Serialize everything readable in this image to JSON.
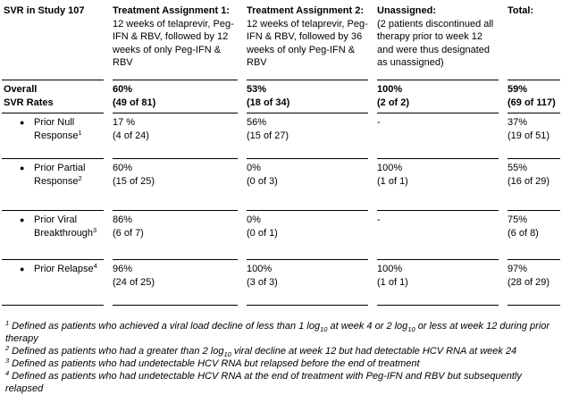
{
  "table": {
    "corner_title": "SVR in Study 107",
    "columns": [
      {
        "title": "Treatment Assignment 1:",
        "desc": "12 weeks of telaprevir, Peg-IFN & RBV, followed by 12 weeks of only Peg-IFN & RBV"
      },
      {
        "title": "Treatment Assignment 2:",
        "desc": "12 weeks of telaprevir, Peg-IFN & RBV, followed by 36 weeks of only Peg-IFN & RBV"
      },
      {
        "title": "Unassigned:",
        "desc": "(2 patients discontinued all therapy prior to week 12 and were thus designated as unassigned)"
      },
      {
        "title": "Total:",
        "desc": ""
      }
    ],
    "rows": [
      {
        "label_line1": "Overall",
        "label_line2": "SVR Rates",
        "cells": [
          {
            "v": "60%",
            "n": "(49 of 81)"
          },
          {
            "v": "53%",
            "n": "(18 of 34)"
          },
          {
            "v": "100%",
            "n": "(2 of 2)"
          },
          {
            "v": "59%",
            "n": "(69 of 117)"
          }
        ]
      },
      {
        "bullet": "●",
        "label": "Prior Null Response",
        "sup": "1",
        "cells": [
          {
            "v": "17 %",
            "n": "(4 of 24)"
          },
          {
            "v": "56%",
            "n": "(15 of 27)"
          },
          {
            "v": "-",
            "n": ""
          },
          {
            "v": "37%",
            "n": "(19 of 51)"
          }
        ]
      },
      {
        "bullet": "●",
        "label": "Prior Partial Response",
        "sup": "2",
        "cells": [
          {
            "v": "60%",
            "n": "(15 of 25)"
          },
          {
            "v": "0%",
            "n": "(0 of 3)"
          },
          {
            "v": "100%",
            "n": "(1 of 1)"
          },
          {
            "v": "55%",
            "n": "(16 of 29)"
          }
        ]
      },
      {
        "bullet": "●",
        "label": "Prior Viral Breakthrough",
        "sup": "3",
        "cells": [
          {
            "v": "86%",
            "n": "(6 of 7)"
          },
          {
            "v": "0%",
            "n": "(0 of 1)"
          },
          {
            "v": "-",
            "n": ""
          },
          {
            "v": "75%",
            "n": "(6 of 8)"
          }
        ]
      },
      {
        "bullet": "●",
        "label": "Prior Relapse",
        "sup": "4",
        "cells": [
          {
            "v": "96%",
            "n": "(24 of 25)"
          },
          {
            "v": "100%",
            "n": "(3 of 3)"
          },
          {
            "v": "100%",
            "n": "(1 of 1)"
          },
          {
            "v": "97%",
            "n": "(28 of 29)"
          }
        ]
      }
    ]
  },
  "footnotes": [
    {
      "marker": "1",
      "a": "Defined as patients who achieved a viral load decline of less than 1 log",
      "sub1": "10",
      "b": " at week 4 or 2 log",
      "sub2": "10",
      "c": " or less at week 12 during prior therapy"
    },
    {
      "marker": "2",
      "a": "Defined as patients who had a greater than 2 log",
      "sub1": "10",
      "b": " viral decline at week 12 but had detectable HCV RNA at week 24",
      "sub2": "",
      "c": ""
    },
    {
      "marker": "3",
      "a": "Defined as patients who had undetectable HCV RNA but relapsed before the end of treatment",
      "sub1": "",
      "b": "",
      "sub2": "",
      "c": ""
    },
    {
      "marker": "4",
      "a": "Defined as patients who had undetectable HCV RNA at the end of treatment with Peg-IFN and RBV but subsequently relapsed",
      "sub1": "",
      "b": "",
      "sub2": "",
      "c": ""
    }
  ]
}
